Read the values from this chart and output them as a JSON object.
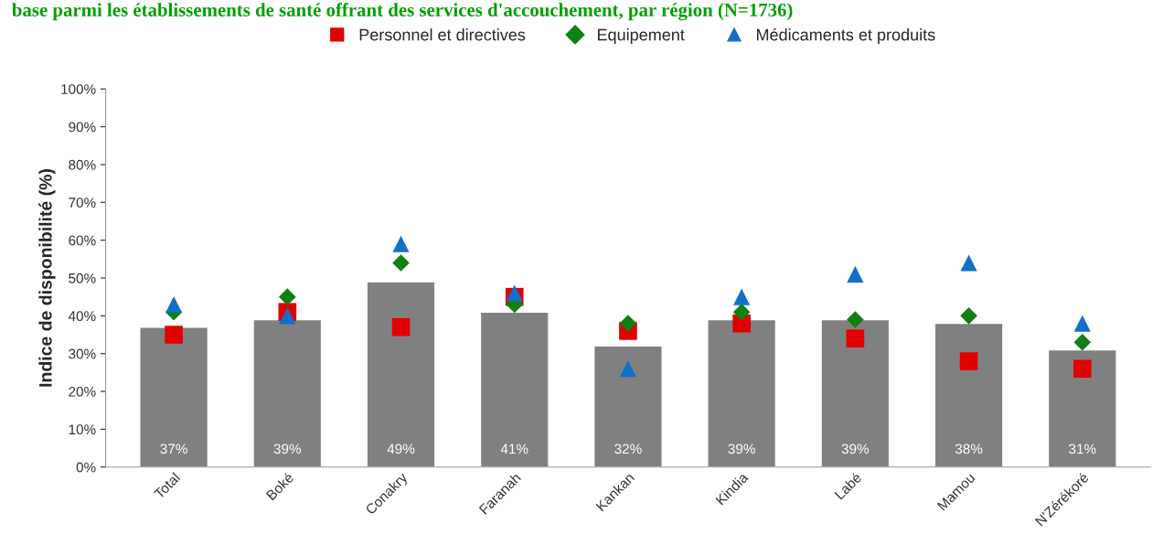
{
  "chart_data": {
    "type": "bar",
    "title": "base parmi les établissements de santé offrant des services d'accouchement, par région (N=1736)",
    "ylabel": "Indice de disponibilité (%)",
    "categories": [
      "Total",
      "Boké",
      "Conakry",
      "Faranah",
      "Kankan",
      "Kindia",
      "Labé",
      "Mamou",
      "N'Zérékoré"
    ],
    "series": [
      {
        "color": "#808080",
        "values": [
          37,
          39,
          49,
          41,
          32,
          39,
          39,
          38,
          31
        ],
        "value_labels": [
          "37%",
          "39%",
          "49%",
          "41%",
          "32%",
          "39%",
          "39%",
          "38%",
          "31%"
        ]
      },
      {
        "type": "scatter",
        "name": "Personnel et directives",
        "color": "#e00000",
        "marker": "square",
        "values": [
          35,
          41,
          37,
          45,
          36,
          38,
          34,
          28,
          26
        ]
      },
      {
        "type": "scatter",
        "name": "Equipement",
        "color": "#108010",
        "marker": "diamond",
        "values": [
          41,
          45,
          54,
          43,
          38,
          41,
          39,
          40,
          33
        ]
      },
      {
        "type": "scatter",
        "name": "Médicaments et produits",
        "color": "#1070c8",
        "marker": "triangle",
        "values": [
          43,
          40,
          59,
          46,
          26,
          45,
          51,
          54,
          38
        ]
      }
    ],
    "ylim": [
      0,
      100
    ],
    "yticks": [
      {
        "value": 0,
        "label": "0%"
      },
      {
        "value": 10,
        "label": "10%"
      },
      {
        "value": 20,
        "label": "20%"
      },
      {
        "value": 30,
        "label": "30%"
      },
      {
        "value": 40,
        "label": "40%"
      },
      {
        "value": 50,
        "label": "50%"
      },
      {
        "value": 60,
        "label": "60%"
      },
      {
        "value": 70,
        "label": "70%"
      },
      {
        "value": 80,
        "label": "80%"
      },
      {
        "value": 90,
        "label": "90%"
      },
      {
        "value": 100,
        "label": "100%"
      }
    ],
    "grid": false,
    "legend": "top"
  }
}
